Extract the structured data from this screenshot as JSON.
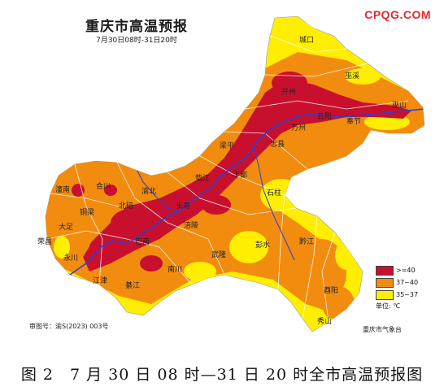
{
  "map": {
    "title": "重庆市高温预报",
    "subtitle": "7月30日08时-31日20时",
    "watermark": "CPQG.COM",
    "map_id": "审图号：渝S(2023) 003号",
    "issuer": "重庆市气象台",
    "legend": {
      "items": [
        {
          "label": ">=40",
          "color": "#c8102e"
        },
        {
          "label": "37~40",
          "color": "#f28c0f"
        },
        {
          "label": "35~37",
          "color": "#ffee00"
        }
      ],
      "unit": "单位: ℃"
    },
    "colors": {
      "land_background": "#ffffff",
      "river": "#2b3fd6",
      "boundary": "#ffffff"
    },
    "place_labels": [
      "城口",
      "巫溪",
      "巫山",
      "奉节",
      "云阳",
      "开州",
      "万州",
      "梁平",
      "垫江",
      "忠县",
      "石柱",
      "丰都",
      "长寿",
      "涪陵",
      "武隆",
      "彭水",
      "黔江",
      "酉阳",
      "秀山",
      "南川",
      "綦江",
      "江津",
      "永川",
      "荣昌",
      "大足",
      "潼南",
      "合川",
      "铜梁",
      "渝北",
      "北碚",
      "巴南"
    ]
  },
  "caption": "图 2　7 月 30 日 08 时—31 日 20 时全市高温预报图"
}
